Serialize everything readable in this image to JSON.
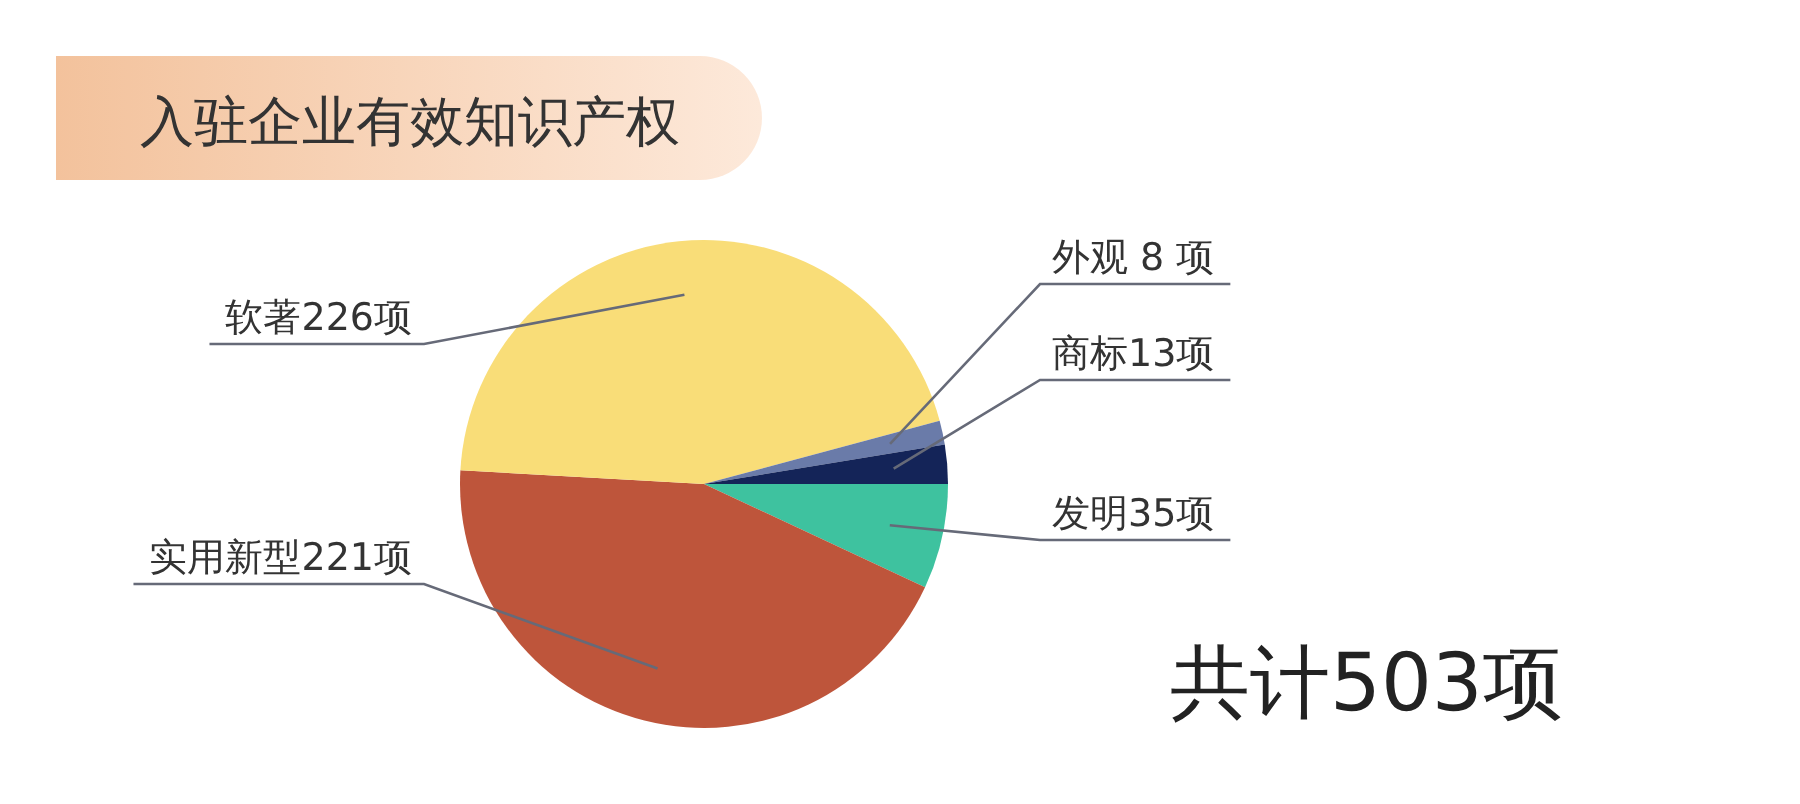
{
  "chart_data": {
    "type": "pie",
    "title": "入驻企业有效知识产权",
    "categories": [
      "发明35项",
      "实用新型221项",
      "软著226项",
      "外观 8 项",
      "商标13项"
    ],
    "values": [
      35,
      221,
      226,
      8,
      13
    ],
    "colors": [
      "#3ec29f",
      "#be553b",
      "#f9dd78",
      "#6a7ba9",
      "#142458"
    ],
    "annotations": [
      "共计503项"
    ]
  }
}
